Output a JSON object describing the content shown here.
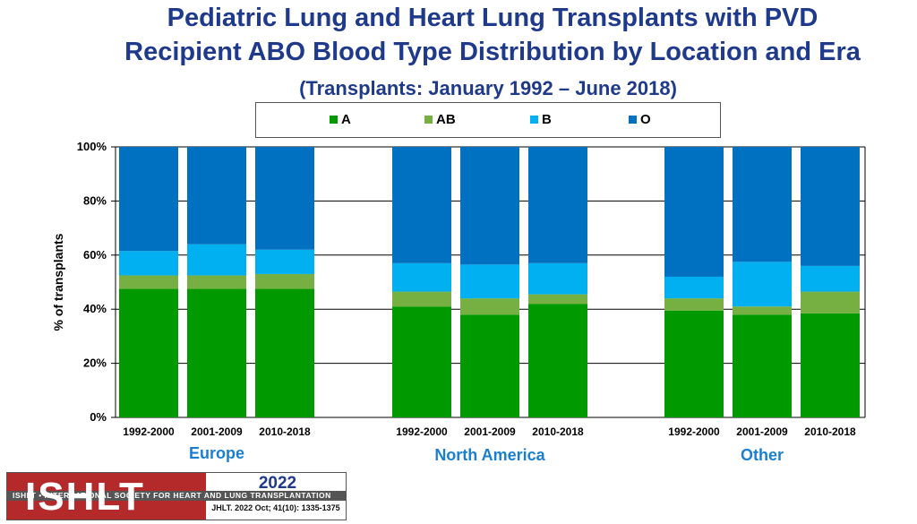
{
  "header": {
    "title_line1": "Pediatric Lung and Heart Lung Transplants with PVD",
    "title_line2": "Recipient ABO Blood Type Distribution by Location and Era",
    "subtitle": "(Transplants: January 1992 – June 2018)"
  },
  "chart_data": {
    "type": "bar",
    "stacked": true,
    "ylabel": "% of transplants",
    "ylim": [
      0,
      100
    ],
    "yticks": [
      "0%",
      "20%",
      "40%",
      "60%",
      "80%",
      "100%"
    ],
    "grid": true,
    "legend_position": "top",
    "groups": [
      {
        "name": "Europe",
        "categories": [
          "1992-2000",
          "2001-2009",
          "2010-2018"
        ]
      },
      {
        "name": "North America",
        "categories": [
          "1992-2000",
          "2001-2009",
          "2010-2018"
        ]
      },
      {
        "name": "Other",
        "categories": [
          "1992-2000",
          "2001-2009",
          "2010-2018"
        ]
      }
    ],
    "series": [
      {
        "name": "A",
        "color": "#009a00",
        "values": [
          47.5,
          47.5,
          47.5,
          41,
          38,
          42,
          39.5,
          38,
          38.5
        ]
      },
      {
        "name": "AB",
        "color": "#76b043",
        "values": [
          5,
          5,
          5.5,
          5.5,
          6,
          3.5,
          4.5,
          3,
          8
        ]
      },
      {
        "name": "B",
        "color": "#00b0f0",
        "values": [
          9,
          11.5,
          9,
          10.5,
          12.5,
          11.5,
          8,
          16.5,
          9.5
        ]
      },
      {
        "name": "O",
        "color": "#0070c0",
        "values": [
          38.5,
          36,
          38,
          43,
          43.5,
          43,
          48,
          42.5,
          44
        ]
      }
    ]
  },
  "logo": {
    "text": "ISHLT",
    "band_text": "ISHLT • INTERNATIONAL SOCIETY FOR HEART AND LUNG TRANSPLANTATION",
    "year": "2022",
    "citation": "JHLT. 2022 Oct; 41(10): 1335-1375"
  }
}
